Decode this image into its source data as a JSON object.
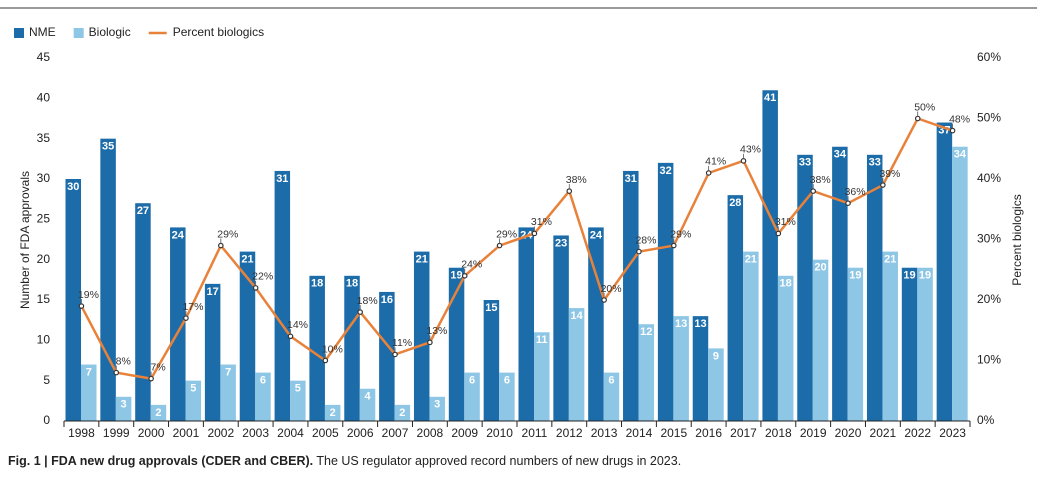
{
  "chart_data": {
    "type": "bar",
    "caption_bold": "Fig. 1 | FDA new drug approvals (CDER and CBER).",
    "caption": "The US regulator approved record numbers of new drugs in 2023.",
    "ylabel": "Number of FDA approvals",
    "y2label": "Percent biologics",
    "categories": [
      "1998",
      "1999",
      "2000",
      "2001",
      "2002",
      "2003",
      "2004",
      "2005",
      "2006",
      "2007",
      "2008",
      "2009",
      "2010",
      "2011",
      "2012",
      "2013",
      "2014",
      "2015",
      "2016",
      "2017",
      "2018",
      "2019",
      "2020",
      "2021",
      "2022",
      "2023"
    ],
    "series": [
      {
        "name": "NME",
        "color": "#1c6ca9",
        "values": [
          30,
          35,
          27,
          24,
          17,
          21,
          31,
          18,
          18,
          16,
          21,
          19,
          15,
          24,
          23,
          24,
          31,
          32,
          13,
          28,
          41,
          33,
          34,
          33,
          19,
          37
        ]
      },
      {
        "name": "Biologic",
        "color": "#8ec6e6",
        "values": [
          7,
          3,
          2,
          5,
          7,
          6,
          5,
          2,
          4,
          2,
          3,
          6,
          6,
          11,
          14,
          6,
          12,
          13,
          9,
          21,
          18,
          20,
          19,
          21,
          19,
          34
        ]
      },
      {
        "name": "Percent biologics",
        "color": "#e8823a",
        "type": "line",
        "axis": "y2",
        "values": [
          19,
          8,
          7,
          17,
          29,
          22,
          14,
          10,
          18,
          11,
          13,
          24,
          29,
          31,
          38,
          20,
          28,
          29,
          41,
          43,
          31,
          38,
          36,
          39,
          50,
          48
        ],
        "value_labels": [
          "19%",
          "8%",
          "7%",
          "17%",
          "29%",
          "22%",
          "14%",
          "10%",
          "18%",
          "11%",
          "13%",
          "24%",
          "29%",
          "31%",
          "38%",
          "20%",
          "28%",
          "29%",
          "41%",
          "43%",
          "31%",
          "38%",
          "36%",
          "39%",
          "50%",
          "48%"
        ]
      }
    ],
    "ylim": [
      0,
      45
    ],
    "yticks": [
      0,
      5,
      10,
      15,
      20,
      25,
      30,
      35,
      40,
      45
    ],
    "y2lim": [
      0,
      60
    ],
    "y2ticks": [
      {
        "value": 0,
        "label": "0%"
      },
      {
        "value": 10,
        "label": "10%"
      },
      {
        "value": 20,
        "label": "20%"
      },
      {
        "value": 30,
        "label": "30%"
      },
      {
        "value": 40,
        "label": "40%"
      },
      {
        "value": 50,
        "label": "50%"
      },
      {
        "value": 60,
        "label": "60%"
      }
    ],
    "grid": false,
    "legend": "top-left"
  }
}
